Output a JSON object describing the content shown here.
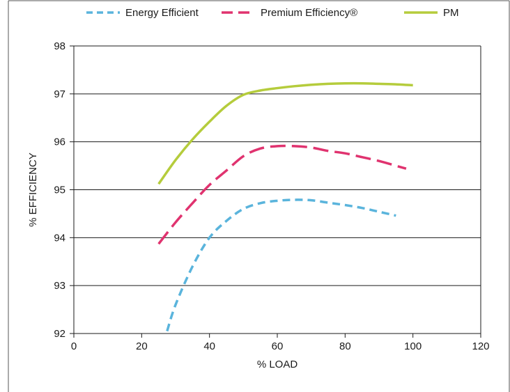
{
  "chart_data": {
    "type": "line",
    "title": "",
    "xlabel": "% LOAD",
    "ylabel": "% EFFICIENCY",
    "xlim": [
      0,
      120
    ],
    "ylim": [
      92,
      98
    ],
    "xticks": [
      0,
      20,
      40,
      60,
      80,
      100,
      120
    ],
    "yticks": [
      92,
      93,
      94,
      95,
      96,
      97,
      98
    ],
    "grid": "horizontal",
    "legend_position": "top",
    "series": [
      {
        "name": "Energy Efficient",
        "color": "#5ab4dc",
        "dash": "dashed",
        "points": [
          [
            27.5,
            92.05
          ],
          [
            30,
            92.6
          ],
          [
            35,
            93.4
          ],
          [
            40,
            94.0
          ],
          [
            45,
            94.35
          ],
          [
            50,
            94.6
          ],
          [
            55,
            94.72
          ],
          [
            60,
            94.77
          ],
          [
            65,
            94.79
          ],
          [
            70,
            94.78
          ],
          [
            75,
            94.73
          ],
          [
            80,
            94.68
          ],
          [
            85,
            94.62
          ],
          [
            90,
            94.54
          ],
          [
            95,
            94.46
          ]
        ]
      },
      {
        "name": "Premium Efficiency®",
        "color": "#e0336f",
        "dash": "long-dash",
        "points": [
          [
            25,
            93.87
          ],
          [
            30,
            94.32
          ],
          [
            35,
            94.72
          ],
          [
            40,
            95.1
          ],
          [
            45,
            95.4
          ],
          [
            50,
            95.7
          ],
          [
            55,
            95.86
          ],
          [
            60,
            95.91
          ],
          [
            65,
            95.91
          ],
          [
            70,
            95.88
          ],
          [
            75,
            95.81
          ],
          [
            80,
            95.76
          ],
          [
            85,
            95.68
          ],
          [
            90,
            95.6
          ],
          [
            95,
            95.5
          ],
          [
            98,
            95.44
          ]
        ]
      },
      {
        "name": "PM",
        "color": "#b5cc3c",
        "dash": "solid",
        "points": [
          [
            25,
            95.12
          ],
          [
            30,
            95.62
          ],
          [
            35,
            96.05
          ],
          [
            40,
            96.42
          ],
          [
            45,
            96.75
          ],
          [
            50,
            96.98
          ],
          [
            55,
            97.07
          ],
          [
            60,
            97.12
          ],
          [
            65,
            97.16
          ],
          [
            70,
            97.19
          ],
          [
            75,
            97.21
          ],
          [
            80,
            97.22
          ],
          [
            85,
            97.22
          ],
          [
            90,
            97.21
          ],
          [
            95,
            97.2
          ],
          [
            100,
            97.18
          ]
        ]
      }
    ]
  }
}
